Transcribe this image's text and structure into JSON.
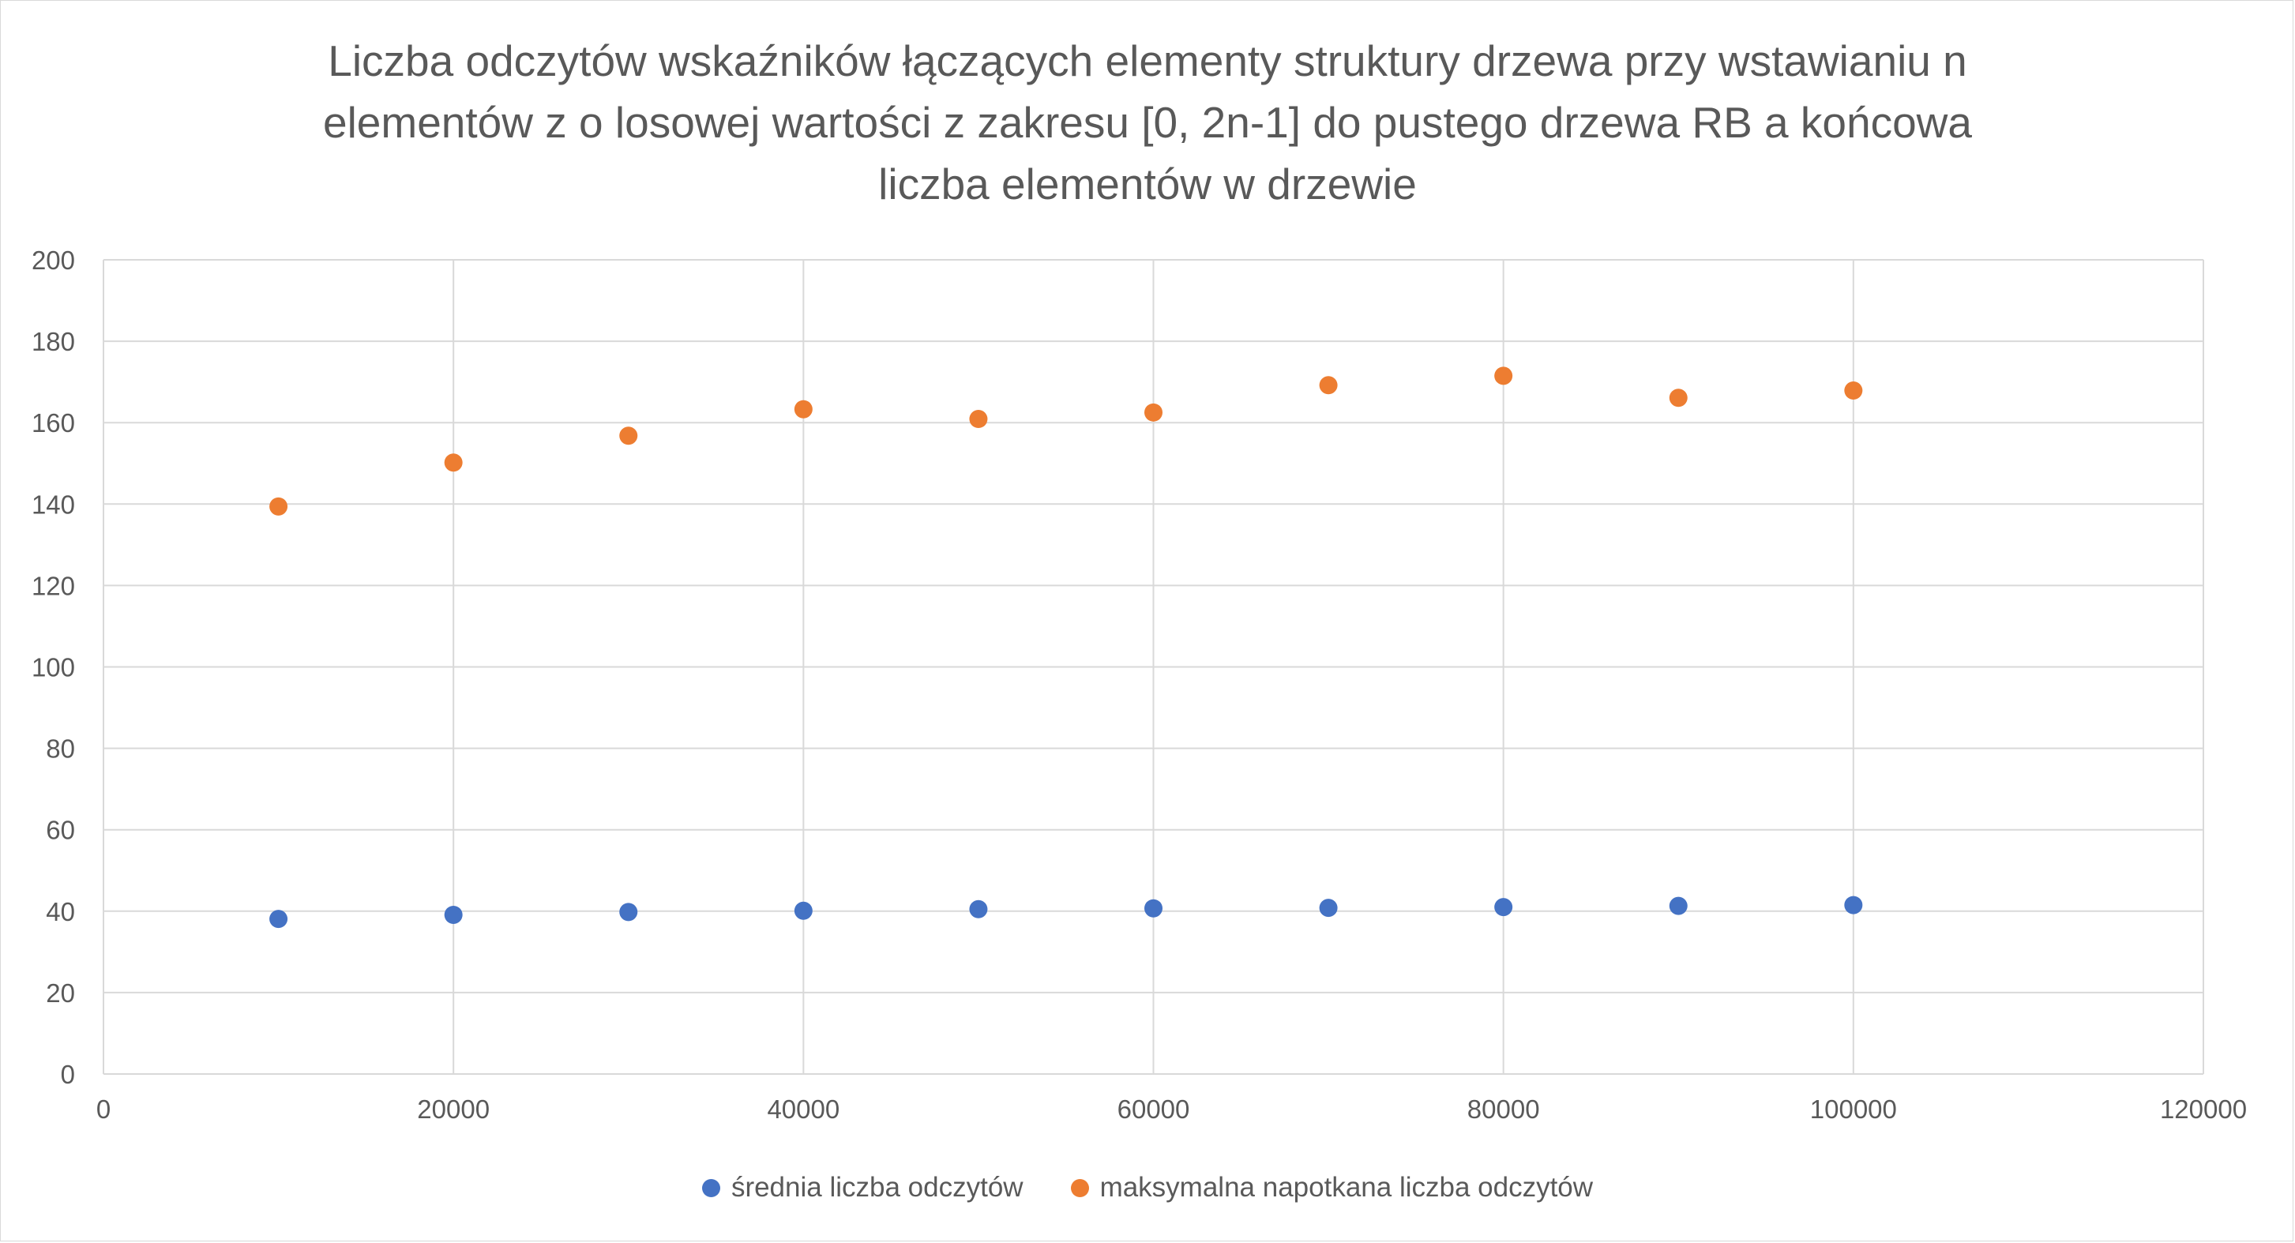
{
  "chart_data": {
    "type": "scatter",
    "title_lines": [
      "Liczba odczytów wskaźników łączących elementy struktury drzewa przy wstawianiu n",
      "elementów z o losowej wartości z zakresu [0, 2n-1] do pustego drzewa RB a końcowa",
      "liczba elementów w drzewie"
    ],
    "xlabel": "",
    "ylabel": "",
    "xlim": [
      0,
      120000
    ],
    "ylim": [
      0,
      200
    ],
    "x_ticks": [
      0,
      20000,
      40000,
      60000,
      80000,
      100000,
      120000
    ],
    "y_ticks": [
      0,
      20,
      40,
      60,
      80,
      100,
      120,
      140,
      160,
      180,
      200
    ],
    "grid": true,
    "legend_position": "bottom",
    "series": [
      {
        "name": "średnia liczba odczytów",
        "color": "#4472C4",
        "x": [
          10000,
          20000,
          30000,
          40000,
          50000,
          60000,
          70000,
          80000,
          90000,
          100000
        ],
        "y": [
          38.1,
          39.1,
          39.8,
          40.1,
          40.5,
          40.7,
          40.8,
          41.0,
          41.3,
          41.5
        ]
      },
      {
        "name": "maksymalna napotkana liczba odczytów",
        "color": "#ED7D31",
        "x": [
          10000,
          20000,
          30000,
          40000,
          50000,
          60000,
          70000,
          80000,
          90000,
          100000
        ],
        "y": [
          139.4,
          150.2,
          156.8,
          163.3,
          160.9,
          162.5,
          169.2,
          171.5,
          166.1,
          167.9
        ]
      }
    ]
  }
}
